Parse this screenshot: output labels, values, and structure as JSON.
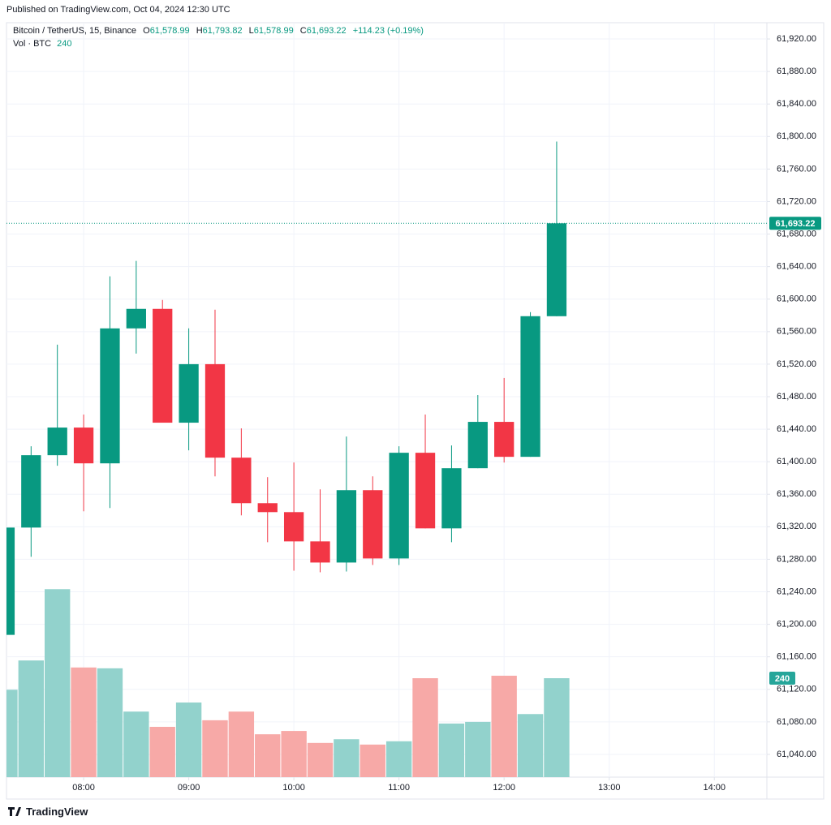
{
  "header": {
    "published": "Published on TradingView.com, Oct 04, 2024 12:30 UTC"
  },
  "legend": {
    "symbol": "Bitcoin / TetherUS, 15, Binance",
    "ohlc": [
      {
        "label": "O",
        "value": "61,578.99"
      },
      {
        "label": "H",
        "value": "61,793.82"
      },
      {
        "label": "L",
        "value": "61,578.99"
      },
      {
        "label": "C",
        "value": "61,693.22"
      }
    ],
    "change": "+114.23 (+0.19%)",
    "volume_label": "Vol · BTC",
    "volume_value": "240"
  },
  "chart_data": {
    "type": "candlestick",
    "x": [
      7.25,
      7.5,
      7.75,
      8,
      8.25,
      8.5,
      8.75,
      9,
      9.25,
      9.5,
      9.75,
      10,
      10.25,
      10.5,
      10.75,
      11,
      11.25,
      11.5,
      11.75,
      12,
      12.25,
      12.5
    ],
    "open": [
      61187,
      61319,
      61408,
      61442,
      61398,
      61564,
      61588,
      61448,
      61520,
      61405,
      61349,
      61338,
      61302,
      61276,
      61365,
      61281,
      61411,
      61318,
      61392,
      61449,
      61406,
      61578.99
    ],
    "high": [
      61319,
      61419,
      61544,
      61458,
      61628,
      61647,
      61599,
      61564,
      61587,
      61441,
      61381,
      61399,
      61366,
      61431,
      61382,
      61419,
      61458,
      61420,
      61482,
      61503,
      61584,
      61793.82
    ],
    "low": [
      61187,
      61283,
      61395,
      61339,
      61343,
      61533,
      61448,
      61414,
      61382,
      61334,
      61301,
      61266,
      61264,
      61265,
      61273,
      61273,
      61318,
      61301,
      61392,
      61399,
      61406,
      61578.99
    ],
    "close": [
      61319,
      61408,
      61442,
      61398,
      61564,
      61588,
      61448,
      61520,
      61405,
      61349,
      61338,
      61302,
      61276,
      61365,
      61281,
      61411,
      61318,
      61392,
      61449,
      61406,
      61579,
      61693.22
    ],
    "volume": [
      212,
      283,
      456,
      266,
      264,
      159,
      122,
      181,
      138,
      159,
      104,
      112,
      83,
      92,
      79,
      87,
      240,
      130,
      134,
      246,
      153,
      240
    ],
    "up_color": "#089981",
    "down_color": "#f23645",
    "volume_up_color": "#92d2cc",
    "volume_down_color": "#f7a9a7",
    "xlim": [
      7.266,
      14.5
    ],
    "ylim": [
      61012,
      61940
    ],
    "volume_ylim": [
      0,
      1830
    ],
    "xticks": [
      {
        "value": 8,
        "label": "08:00"
      },
      {
        "value": 9,
        "label": "09:00"
      },
      {
        "value": 10,
        "label": "10:00"
      },
      {
        "value": 11,
        "label": "11:00"
      },
      {
        "value": 12,
        "label": "12:00"
      },
      {
        "value": 13,
        "label": "13:00"
      },
      {
        "value": 14,
        "label": "14:00"
      }
    ],
    "yticks": [
      {
        "value": 61040,
        "label": "61,040.00"
      },
      {
        "value": 61080,
        "label": "61,080.00"
      },
      {
        "value": 61120,
        "label": "61,120.00"
      },
      {
        "value": 61160,
        "label": "61,160.00"
      },
      {
        "value": 61200,
        "label": "61,200.00"
      },
      {
        "value": 61240,
        "label": "61,240.00"
      },
      {
        "value": 61280,
        "label": "61,280.00"
      },
      {
        "value": 61320,
        "label": "61,320.00"
      },
      {
        "value": 61360,
        "label": "61,360.00"
      },
      {
        "value": 61400,
        "label": "61,400.00"
      },
      {
        "value": 61440,
        "label": "61,440.00"
      },
      {
        "value": 61480,
        "label": "61,480.00"
      },
      {
        "value": 61520,
        "label": "61,520.00"
      },
      {
        "value": 61560,
        "label": "61,560.00"
      },
      {
        "value": 61600,
        "label": "61,600.00"
      },
      {
        "value": 61640,
        "label": "61,640.00"
      },
      {
        "value": 61680,
        "label": "61,680.00"
      },
      {
        "value": 61720,
        "label": "61,720.00"
      },
      {
        "value": 61760,
        "label": "61,760.00"
      },
      {
        "value": 61800,
        "label": "61,800.00"
      },
      {
        "value": 61840,
        "label": "61,840.00"
      },
      {
        "value": 61880,
        "label": "61,880.00"
      },
      {
        "value": 61920,
        "label": "61,920.00"
      }
    ],
    "grid": true,
    "last_price": {
      "value": 61693.22,
      "label": "61,693.22"
    },
    "last_volume": {
      "value": 240,
      "label": "240"
    }
  },
  "footer": {
    "brand": "TradingView"
  }
}
